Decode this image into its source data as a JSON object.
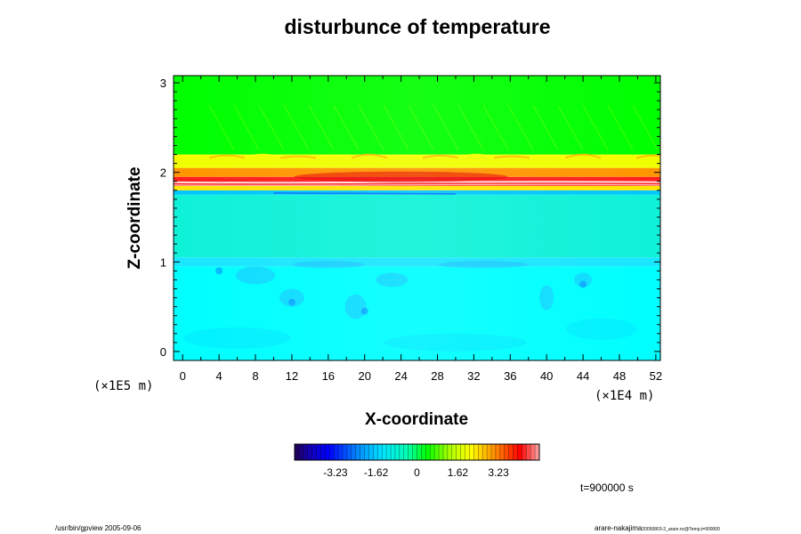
{
  "chart_data": {
    "type": "heatmap",
    "title": "disturbunce of temperature",
    "xlabel": "X-coordinate",
    "ylabel": "Z-coordinate",
    "x_unit": "(×1E4 m)",
    "y_unit": "(×1E5 m)",
    "x_ticks": [
      "0",
      "4",
      "8",
      "12",
      "16",
      "20",
      "24",
      "28",
      "32",
      "36",
      "40",
      "44",
      "48",
      "52"
    ],
    "y_ticks": [
      "0",
      "1",
      "2",
      "3"
    ],
    "xlim": [
      -1,
      52.5
    ],
    "ylim": [
      -0.1,
      3.08
    ],
    "colorbar": {
      "tick_labels": [
        "-3.23",
        "-1.62",
        "0",
        "1.62",
        "3.23"
      ],
      "tick_values": [
        -3.23,
        -1.62,
        0,
        1.62,
        3.23
      ],
      "range": [
        -4.85,
        4.85
      ]
    },
    "time_label": "t=900000 s",
    "bands": [
      {
        "z_from": -0.1,
        "z_to": 0.95,
        "value": -1.5,
        "color": "#00ffff"
      },
      {
        "z_from": 0.95,
        "z_to": 1.05,
        "value": -1.6,
        "color": "#19e6ff"
      },
      {
        "z_from": 1.05,
        "z_to": 1.75,
        "value": -1.1,
        "color": "#0ff2d8"
      },
      {
        "z_from": 1.75,
        "z_to": 1.8,
        "value": -1.9,
        "color": "#00c8ff"
      },
      {
        "z_from": 1.8,
        "z_to": 1.85,
        "value": 1.5,
        "color": "#ffe600"
      },
      {
        "z_from": 1.85,
        "z_to": 1.95,
        "value": 3.8,
        "color": "#ff1e1e"
      },
      {
        "z_from": 1.95,
        "z_to": 2.05,
        "value": 2.2,
        "color": "#ff9600"
      },
      {
        "z_from": 2.05,
        "z_to": 2.2,
        "value": 1.3,
        "color": "#f0ff00"
      },
      {
        "z_from": 2.2,
        "z_to": 3.08,
        "value": 0.2,
        "color": "#00ff00"
      }
    ]
  },
  "footer": {
    "left": "/usr/bin/gpview 2005-09-06",
    "right_main": "arare-nakajima",
    "right_sub": "20050803-2_arare.nc@Temp,t=900000"
  }
}
